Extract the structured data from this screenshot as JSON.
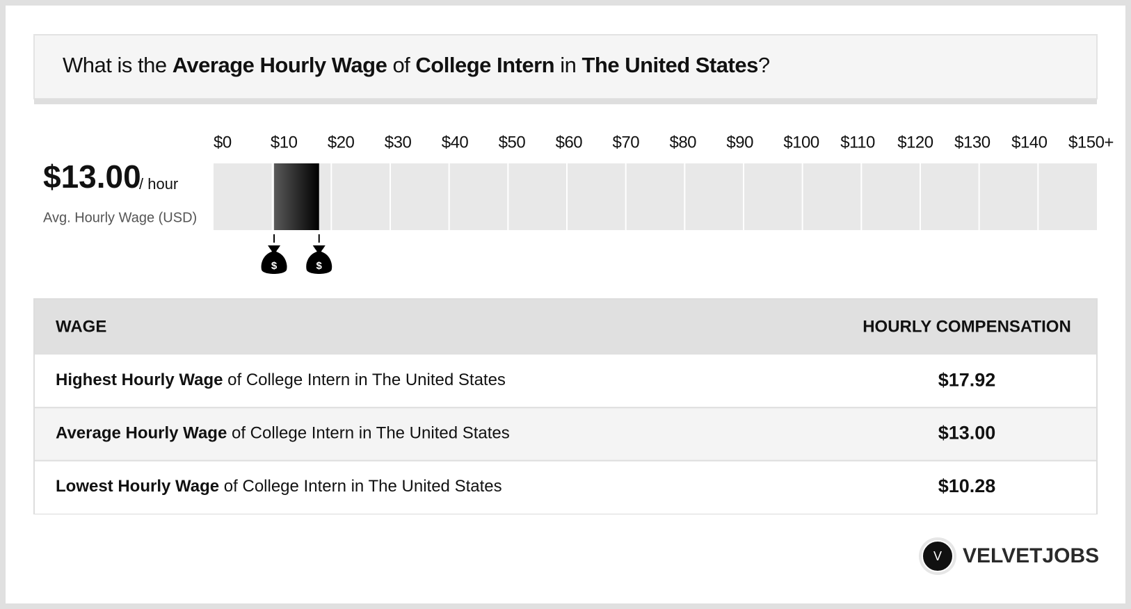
{
  "header": {
    "title": [
      {
        "text": "What is the ",
        "bold": false
      },
      {
        "text": "Average Hourly Wage",
        "bold": true
      },
      {
        "text": " of ",
        "bold": false
      },
      {
        "text": "College Intern",
        "bold": true
      },
      {
        "text": " in ",
        "bold": false
      },
      {
        "text": "The United States",
        "bold": true
      },
      {
        "text": "?",
        "bold": false
      }
    ]
  },
  "summary": {
    "value": "$13.00",
    "unit": "/ hour",
    "caption": "Avg. Hourly Wage (USD)"
  },
  "scale": {
    "lim": [
      0,
      150
    ],
    "ticks": [
      {
        "value": 0,
        "label": "$0"
      },
      {
        "value": 10,
        "label": "$10"
      },
      {
        "value": 20,
        "label": "$20"
      },
      {
        "value": 30,
        "label": "$30"
      },
      {
        "value": 40,
        "label": "$40"
      },
      {
        "value": 50,
        "label": "$50"
      },
      {
        "value": 60,
        "label": "$60"
      },
      {
        "value": 70,
        "label": "$70"
      },
      {
        "value": 80,
        "label": "$80"
      },
      {
        "value": 90,
        "label": "$90"
      },
      {
        "value": 100,
        "label": "$100"
      },
      {
        "value": 110,
        "label": "$110"
      },
      {
        "value": 120,
        "label": "$120"
      },
      {
        "value": 130,
        "label": "$130"
      },
      {
        "value": 140,
        "label": "$140"
      },
      {
        "value": 150,
        "label": "$150+"
      }
    ],
    "range": [
      10.28,
      17.92
    ]
  },
  "table": {
    "columns": [
      "WAGE",
      "HOURLY COMPENSATION"
    ],
    "rows": [
      [
        [
          {
            "text": "Highest Hourly Wage",
            "bold": true
          },
          {
            "text": " of College Intern in The United States",
            "bold": false
          }
        ],
        "$17.92"
      ],
      [
        [
          {
            "text": "Average Hourly Wage",
            "bold": true
          },
          {
            "text": " of College Intern in The United States",
            "bold": false
          }
        ],
        "$13.00"
      ],
      [
        [
          {
            "text": "Lowest Hourly Wage",
            "bold": true
          },
          {
            "text": " of College Intern in The United States",
            "bold": false
          }
        ],
        "$10.28"
      ]
    ]
  },
  "logo": {
    "letter": "V",
    "text": "VELVETJOBS"
  }
}
